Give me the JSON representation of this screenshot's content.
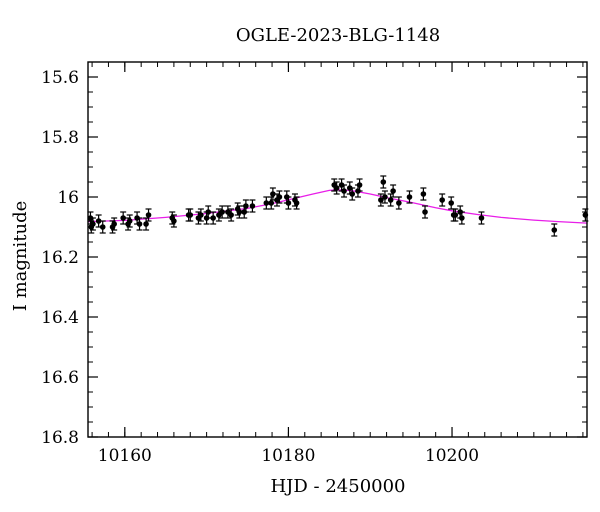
{
  "chart_data": {
    "type": "scatter",
    "title": "OGLE-2023-BLG-1148",
    "xlabel": "HJD - 2450000",
    "ylabel": "I magnitude",
    "xlim": [
      10155.5,
      10216.5
    ],
    "ylim": [
      15.55,
      16.8
    ],
    "y_inverted": true,
    "x_ticks": [
      10160,
      10180,
      10200
    ],
    "x_tick_labels": [
      "10160",
      "10180",
      "10200"
    ],
    "x_minor_step": 2,
    "y_ticks": [
      15.6,
      15.8,
      16.0,
      16.2,
      16.4,
      16.6,
      16.8
    ],
    "y_tick_labels": [
      "15.6",
      "15.8",
      "16",
      "16.2",
      "16.4",
      "16.6",
      "16.8"
    ],
    "y_minor_step": 0.05,
    "grid": false,
    "colors": {
      "data": "#000000",
      "model": "#e81ee8",
      "axes": "#000000"
    },
    "series": [
      {
        "kind": "data",
        "x": [
          10155.8,
          10155.9,
          10156.1,
          10156.8,
          10157.3,
          10158.5,
          10158.7,
          10159.8,
          10160.4,
          10160.6,
          10161.5,
          10161.8,
          10162.9,
          10162.6,
          10165.8,
          10166.0,
          10167.8,
          10168.0,
          10169.0,
          10169.3,
          10170.0,
          10170.2,
          10170.8,
          10171.5,
          10171.9,
          10172.6,
          10173.0,
          10173.8,
          10174.0,
          10174.6,
          10174.8,
          10175.6,
          10177.3,
          10177.9,
          10178.1,
          10178.6,
          10178.9,
          10179.8,
          10180.0,
          10180.8,
          10181.0,
          10185.6,
          10185.9,
          10186.5,
          10186.8,
          10187.5,
          10187.8,
          10188.5,
          10188.7,
          10191.3,
          10191.6,
          10191.8,
          10192.5,
          10192.8,
          10193.5,
          10194.8,
          10196.5,
          10196.7,
          10198.8,
          10199.9,
          10200.2,
          10200.4,
          10201.0,
          10201.2,
          10203.6,
          10212.5,
          10216.3
        ],
        "y": [
          16.07,
          16.1,
          16.09,
          16.08,
          16.1,
          16.1,
          16.09,
          16.07,
          16.09,
          16.08,
          16.07,
          16.09,
          16.06,
          16.09,
          16.07,
          16.08,
          16.06,
          16.06,
          16.07,
          16.06,
          16.07,
          16.05,
          16.07,
          16.06,
          16.05,
          16.05,
          16.06,
          16.04,
          16.05,
          16.05,
          16.03,
          16.03,
          16.02,
          16.02,
          15.99,
          16.01,
          16.0,
          16.0,
          16.02,
          16.01,
          16.02,
          15.96,
          15.97,
          15.96,
          15.98,
          15.97,
          15.99,
          15.98,
          15.96,
          16.01,
          15.95,
          16.0,
          16.01,
          15.98,
          16.02,
          16.0,
          15.99,
          16.05,
          16.01,
          16.02,
          16.06,
          16.06,
          16.05,
          16.07,
          16.07,
          16.11,
          16.06
        ],
        "y_err": 0.02
      },
      {
        "kind": "model",
        "x": [
          10155.5,
          10160,
          10165,
          10170,
          10175,
          10178,
          10181,
          10183,
          10185,
          10186,
          10187,
          10188,
          10190,
          10192,
          10195,
          10198,
          10200,
          10203,
          10206,
          10210,
          10213,
          10216.5
        ],
        "y": [
          16.082,
          16.078,
          16.068,
          16.055,
          16.038,
          16.022,
          16.003,
          15.99,
          15.978,
          15.976,
          15.977,
          15.98,
          15.99,
          16.002,
          16.018,
          16.036,
          16.046,
          16.058,
          16.068,
          16.077,
          16.082,
          16.087
        ]
      }
    ]
  }
}
